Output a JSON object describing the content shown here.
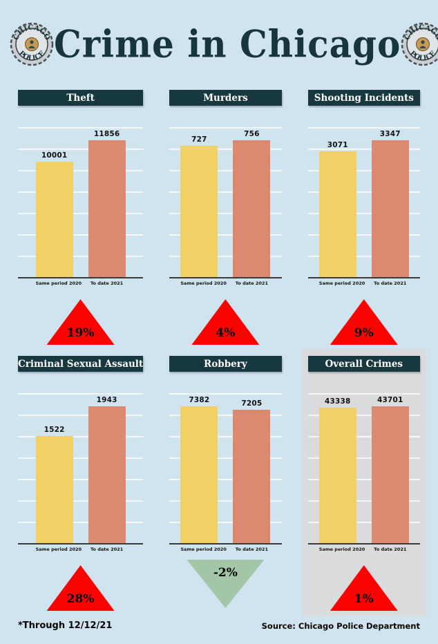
{
  "page_title": "Crime in Chicago",
  "badge": {
    "top_text": "CHICAGO",
    "bottom_text": "POLICE"
  },
  "footer": {
    "note": "*Through 12/12/21",
    "source": "Source: Chicago Police Department"
  },
  "colors": {
    "background": "#cfe4ef",
    "header_bar": "#17383e",
    "bar_2020": "#f1d065",
    "bar_2021": "#db8a71",
    "increase_triangle": "#fa0200",
    "decrease_triangle": "#a3c6a9",
    "highlight_panel": "#d9dbdd"
  },
  "chart_data": [
    {
      "type": "bar",
      "title": "Theft",
      "categories": [
        "Same period 2020",
        "To date 2021"
      ],
      "values": [
        10001,
        11856
      ],
      "change": "19%",
      "direction": "up",
      "highlight": false
    },
    {
      "type": "bar",
      "title": "Murders",
      "categories": [
        "Same period 2020",
        "To date 2021"
      ],
      "values": [
        727,
        756
      ],
      "change": "4%",
      "direction": "up",
      "highlight": false
    },
    {
      "type": "bar",
      "title": "Shooting Incidents",
      "categories": [
        "Same period 2020",
        "To date 2021"
      ],
      "values": [
        3071,
        3347
      ],
      "change": "9%",
      "direction": "up",
      "highlight": false
    },
    {
      "type": "bar",
      "title": "Criminal Sexual Assault",
      "categories": [
        "Same period 2020",
        "To date 2021"
      ],
      "values": [
        1522,
        1943
      ],
      "change": "28%",
      "direction": "up",
      "highlight": false
    },
    {
      "type": "bar",
      "title": "Robbery",
      "categories": [
        "Same period 2020",
        "To date 2021"
      ],
      "values": [
        7382,
        7205
      ],
      "change": "-2%",
      "direction": "down",
      "highlight": false
    },
    {
      "type": "bar",
      "title": "Overall Crimes",
      "categories": [
        "Same period 2020",
        "To date 2021"
      ],
      "values": [
        43338,
        43701
      ],
      "change": "1%",
      "direction": "up",
      "highlight": true
    }
  ]
}
